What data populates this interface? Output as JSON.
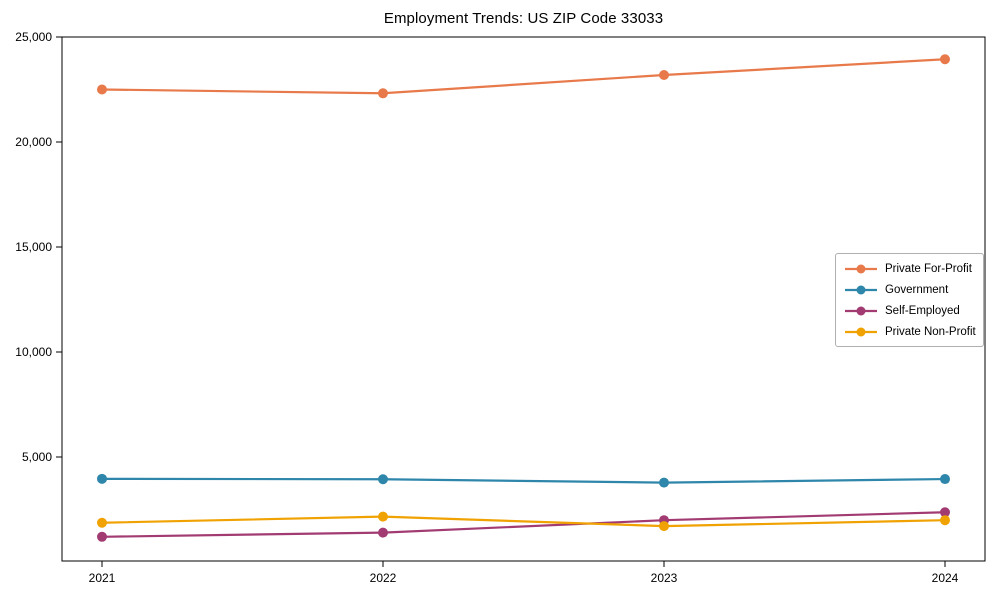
{
  "chart_data": {
    "type": "line",
    "title": "Employment Trends: US ZIP Code 33033",
    "categories": [
      "2021",
      "2022",
      "2023",
      "2024"
    ],
    "series": [
      {
        "name": "Private For-Profit",
        "color": "#E8794A",
        "values": [
          22500,
          22320,
          23190,
          23940
        ]
      },
      {
        "name": "Government",
        "color": "#2E86AB",
        "values": [
          3960,
          3940,
          3780,
          3950
        ]
      },
      {
        "name": "Self-Employed",
        "color": "#A23B72",
        "values": [
          1200,
          1400,
          1990,
          2370
        ]
      },
      {
        "name": "Private Non-Profit",
        "color": "#F0A202",
        "values": [
          1870,
          2160,
          1710,
          1990
        ]
      }
    ],
    "xlabel": "",
    "ylabel": "",
    "ylim": [
      0,
      25000
    ],
    "yticks": [
      5000,
      10000,
      15000,
      20000,
      25000
    ],
    "ytick_labels": [
      "5,000",
      "10,000",
      "15,000",
      "20,000",
      "25,000"
    ],
    "grid": false,
    "legend_position": "center-right",
    "axis_color": "#000000",
    "background_color": "#ffffff",
    "marker": "circle",
    "marker_radius": 5,
    "line_width": 2.2
  }
}
